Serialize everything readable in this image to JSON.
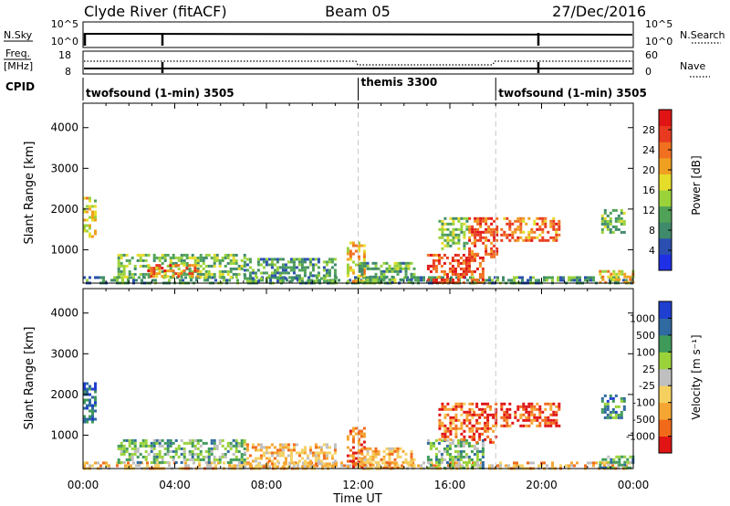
{
  "header": {
    "title_left": "Clyde River (fitACF)",
    "title_center": "Beam 05",
    "title_right": "27/Dec/2016"
  },
  "top_panels": {
    "nsky_label": "N.Sky",
    "nsky_ticks": [
      "10^5",
      "10^0"
    ],
    "nsearch_label": "N.Search",
    "nsearch_ticks": [
      "10^5",
      "10^0"
    ],
    "freq_label_1": "Freq.",
    "freq_label_2": "[MHz]",
    "freq_ticks": [
      "18",
      "8"
    ],
    "nave_label": "Nave",
    "nave_ticks": [
      "60",
      "0"
    ],
    "cpid_label": "CPID"
  },
  "cpid_segments": [
    {
      "label": "twofsound (1-min) 3505",
      "start_hour": 0
    },
    {
      "label": "themis 3300",
      "start_hour": 12
    },
    {
      "label": "twofsound (1-min) 3505",
      "start_hour": 18
    }
  ],
  "colors": {
    "power_scale": [
      "#1f2fe6",
      "#2a4fb0",
      "#3f8a6a",
      "#4fa257",
      "#9ad23a",
      "#e6dc2a",
      "#f0a020",
      "#f07020",
      "#e83a1f",
      "#e01414"
    ],
    "velocity_scale": [
      "#e01414",
      "#f06a1a",
      "#f5a532",
      "#f5d060",
      "#bfbfbf",
      "#9ad23a",
      "#3f9a5a",
      "#2f6aa0",
      "#1f3fd0"
    ]
  },
  "chart_data": [
    {
      "type": "heatmap",
      "title": "",
      "xlabel": "Time UT",
      "ylabel": "Slant Range [km]",
      "x_ticks": [
        "00:00",
        "04:00",
        "08:00",
        "12:00",
        "16:00",
        "20:00",
        "00:00"
      ],
      "xlim_hours": [
        0,
        24
      ],
      "y_ticks": [
        1000,
        2000,
        3000,
        4000
      ],
      "ylim": [
        180,
        4600
      ],
      "colorbar_label": "Power [dB]",
      "colorbar_ticks": [
        "4",
        "8",
        "12",
        "16",
        "20",
        "24",
        "28"
      ],
      "colorbar_range": [
        0,
        30
      ],
      "regions": [
        {
          "t0": 0.0,
          "t1": 0.5,
          "r0": 1300,
          "r1": 2300,
          "level": 0.55
        },
        {
          "t0": 0.0,
          "t1": 24.0,
          "r0": 180,
          "r1": 350,
          "level": 0.3
        },
        {
          "t0": 1.5,
          "t1": 7.0,
          "r0": 350,
          "r1": 900,
          "level": 0.4
        },
        {
          "t0": 2.8,
          "t1": 5.0,
          "r0": 350,
          "r1": 650,
          "level": 0.75
        },
        {
          "t0": 7.0,
          "t1": 11.0,
          "r0": 200,
          "r1": 800,
          "level": 0.3
        },
        {
          "t0": 11.5,
          "t1": 12.3,
          "r0": 250,
          "r1": 1200,
          "level": 0.6
        },
        {
          "t0": 12.0,
          "t1": 14.5,
          "r0": 200,
          "r1": 700,
          "level": 0.35
        },
        {
          "t0": 15.0,
          "t1": 17.5,
          "r0": 200,
          "r1": 900,
          "level": 0.85
        },
        {
          "t0": 15.5,
          "t1": 16.8,
          "r0": 1000,
          "r1": 1800,
          "level": 0.4
        },
        {
          "t0": 16.8,
          "t1": 18.0,
          "r0": 800,
          "r1": 1800,
          "level": 0.8
        },
        {
          "t0": 18.2,
          "t1": 20.8,
          "r0": 1200,
          "r1": 1800,
          "level": 0.75
        },
        {
          "t0": 22.6,
          "t1": 23.6,
          "r0": 1400,
          "r1": 2000,
          "level": 0.35
        },
        {
          "t0": 22.5,
          "t1": 24.0,
          "r0": 200,
          "r1": 500,
          "level": 0.6
        }
      ]
    },
    {
      "type": "heatmap",
      "title": "",
      "xlabel": "Time UT",
      "ylabel": "Slant Range [km]",
      "x_ticks": [
        "00:00",
        "04:00",
        "08:00",
        "12:00",
        "16:00",
        "20:00",
        "00:00"
      ],
      "xlim_hours": [
        0,
        24
      ],
      "y_ticks": [
        1000,
        2000,
        3000,
        4000
      ],
      "ylim": [
        180,
        4600
      ],
      "colorbar_label": "Velocity [m s⁻¹]",
      "colorbar_ticks": [
        "-1000",
        "-500",
        "-100",
        "-25",
        "25",
        "100",
        "500",
        "1000"
      ],
      "colorbar_range": [
        -1200,
        1200
      ],
      "regions": [
        {
          "t0": 0.0,
          "t1": 0.5,
          "r0": 1300,
          "r1": 2300,
          "level": 0.85
        },
        {
          "t0": 0.0,
          "t1": 24.0,
          "r0": 180,
          "r1": 350,
          "level": 0.35
        },
        {
          "t0": 1.5,
          "t1": 7.0,
          "r0": 350,
          "r1": 900,
          "level": 0.65
        },
        {
          "t0": 7.0,
          "t1": 11.0,
          "r0": 200,
          "r1": 800,
          "level": 0.35
        },
        {
          "t0": 11.5,
          "t1": 12.3,
          "r0": 250,
          "r1": 1200,
          "level": 0.15
        },
        {
          "t0": 12.0,
          "t1": 14.5,
          "r0": 200,
          "r1": 700,
          "level": 0.3
        },
        {
          "t0": 15.0,
          "t1": 17.5,
          "r0": 200,
          "r1": 900,
          "level": 0.65
        },
        {
          "t0": 15.5,
          "t1": 17.0,
          "r0": 900,
          "r1": 1800,
          "level": 0.2
        },
        {
          "t0": 17.0,
          "t1": 18.0,
          "r0": 800,
          "r1": 1800,
          "level": 0.1
        },
        {
          "t0": 18.2,
          "t1": 20.8,
          "r0": 1200,
          "r1": 1800,
          "level": 0.12
        },
        {
          "t0": 22.6,
          "t1": 23.6,
          "r0": 1400,
          "r1": 2000,
          "level": 0.75
        },
        {
          "t0": 22.5,
          "t1": 24.0,
          "r0": 200,
          "r1": 500,
          "level": 0.7
        }
      ]
    }
  ]
}
